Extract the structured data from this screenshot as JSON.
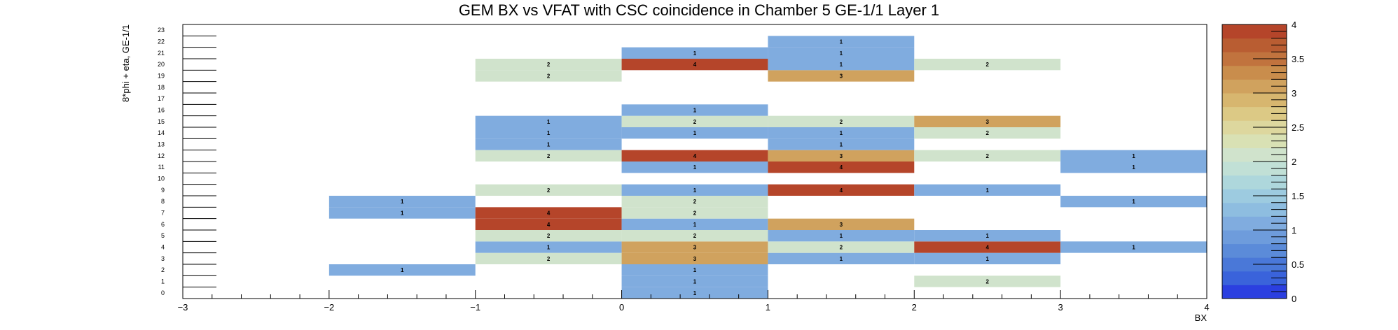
{
  "chart_data": {
    "type": "heatmap",
    "title": "GEM BX vs VFAT with CSC coincidence in Chamber 5 GE-1/1 Layer 1",
    "xlabel": "BX",
    "ylabel": "8*phi + eta, GE-1/1",
    "xlim": [
      -3,
      4
    ],
    "ylim": [
      0,
      24
    ],
    "x_tick_labels": [
      "−3",
      "−2",
      "−1",
      "0",
      "1",
      "2",
      "3",
      "4"
    ],
    "y_tick_labels": [
      "0",
      "1",
      "2",
      "3",
      "4",
      "5",
      "6",
      "7",
      "8",
      "9",
      "10",
      "11",
      "12",
      "13",
      "14",
      "15",
      "16",
      "17",
      "18",
      "19",
      "20",
      "21",
      "22",
      "23"
    ],
    "colorbar": {
      "range": [
        0,
        4
      ],
      "tick_labels": [
        "0",
        "0.5",
        "1",
        "1.5",
        "2",
        "2.5",
        "3",
        "3.5",
        "4"
      ],
      "tick_values": [
        0,
        0.5,
        1,
        1.5,
        2,
        2.5,
        3,
        3.5,
        4
      ]
    },
    "palette": [
      "#2b3fe0",
      "#3a63db",
      "#4a78d8",
      "#5b8bd9",
      "#6e9cdc",
      "#80acdf",
      "#8ebde0",
      "#9dcbe0",
      "#aed7dc",
      "#c1e0d6",
      "#d0e3cc",
      "#d9e1b4",
      "#ddd79e",
      "#dcc985",
      "#d7b66f",
      "#d0a25e",
      "#c98d4c",
      "#c1733e",
      "#b95d32",
      "#b5452a"
    ],
    "cells": [
      {
        "bx": 0,
        "y": 0,
        "value": 1
      },
      {
        "bx": 0,
        "y": 1,
        "value": 1
      },
      {
        "bx": 2,
        "y": 1,
        "value": 2
      },
      {
        "bx": -2,
        "y": 2,
        "value": 1
      },
      {
        "bx": 0,
        "y": 2,
        "value": 1
      },
      {
        "bx": -1,
        "y": 3,
        "value": 2
      },
      {
        "bx": 0,
        "y": 3,
        "value": 3
      },
      {
        "bx": 1,
        "y": 3,
        "value": 1
      },
      {
        "bx": 2,
        "y": 3,
        "value": 1
      },
      {
        "bx": -1,
        "y": 4,
        "value": 1
      },
      {
        "bx": 0,
        "y": 4,
        "value": 3
      },
      {
        "bx": 1,
        "y": 4,
        "value": 2
      },
      {
        "bx": 2,
        "y": 4,
        "value": 4
      },
      {
        "bx": 3,
        "y": 4,
        "value": 1
      },
      {
        "bx": -1,
        "y": 5,
        "value": 2
      },
      {
        "bx": 0,
        "y": 5,
        "value": 2
      },
      {
        "bx": 1,
        "y": 5,
        "value": 1
      },
      {
        "bx": 2,
        "y": 5,
        "value": 1
      },
      {
        "bx": -1,
        "y": 6,
        "value": 4
      },
      {
        "bx": 0,
        "y": 6,
        "value": 1
      },
      {
        "bx": 1,
        "y": 6,
        "value": 3
      },
      {
        "bx": -2,
        "y": 7,
        "value": 1
      },
      {
        "bx": -1,
        "y": 7,
        "value": 4
      },
      {
        "bx": 0,
        "y": 7,
        "value": 2
      },
      {
        "bx": -2,
        "y": 8,
        "value": 1
      },
      {
        "bx": 0,
        "y": 8,
        "value": 2
      },
      {
        "bx": 3,
        "y": 8,
        "value": 1
      },
      {
        "bx": -1,
        "y": 9,
        "value": 2
      },
      {
        "bx": 0,
        "y": 9,
        "value": 1
      },
      {
        "bx": 1,
        "y": 9,
        "value": 4
      },
      {
        "bx": 2,
        "y": 9,
        "value": 1
      },
      {
        "bx": 0,
        "y": 11,
        "value": 1
      },
      {
        "bx": 1,
        "y": 11,
        "value": 4
      },
      {
        "bx": 3,
        "y": 11,
        "value": 1
      },
      {
        "bx": -1,
        "y": 12,
        "value": 2
      },
      {
        "bx": 0,
        "y": 12,
        "value": 4
      },
      {
        "bx": 1,
        "y": 12,
        "value": 3
      },
      {
        "bx": 2,
        "y": 12,
        "value": 2
      },
      {
        "bx": 3,
        "y": 12,
        "value": 1
      },
      {
        "bx": -1,
        "y": 13,
        "value": 1
      },
      {
        "bx": 1,
        "y": 13,
        "value": 1
      },
      {
        "bx": -1,
        "y": 14,
        "value": 1
      },
      {
        "bx": 0,
        "y": 14,
        "value": 1
      },
      {
        "bx": 1,
        "y": 14,
        "value": 1
      },
      {
        "bx": 2,
        "y": 14,
        "value": 2
      },
      {
        "bx": -1,
        "y": 15,
        "value": 1
      },
      {
        "bx": 0,
        "y": 15,
        "value": 2
      },
      {
        "bx": 1,
        "y": 15,
        "value": 2
      },
      {
        "bx": 2,
        "y": 15,
        "value": 3
      },
      {
        "bx": 0,
        "y": 16,
        "value": 1
      },
      {
        "bx": -1,
        "y": 19,
        "value": 2
      },
      {
        "bx": 1,
        "y": 19,
        "value": 3
      },
      {
        "bx": -1,
        "y": 20,
        "value": 2
      },
      {
        "bx": 0,
        "y": 20,
        "value": 4
      },
      {
        "bx": 1,
        "y": 20,
        "value": 1
      },
      {
        "bx": 2,
        "y": 20,
        "value": 2
      },
      {
        "bx": 0,
        "y": 21,
        "value": 1
      },
      {
        "bx": 1,
        "y": 21,
        "value": 1
      },
      {
        "bx": 1,
        "y": 22,
        "value": 1
      }
    ]
  }
}
